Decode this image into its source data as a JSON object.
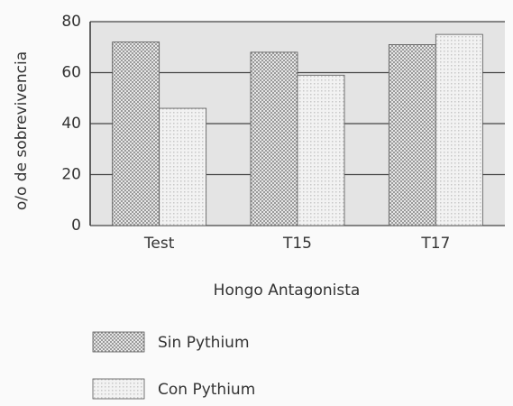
{
  "chart_data": {
    "type": "bar",
    "x_label": "Hongo Antagonista",
    "y_label": "o/o de sobrevivencia",
    "categories": [
      "Test",
      "T15",
      "T17"
    ],
    "series": [
      {
        "name": "Sin Pythium",
        "color": "#9a9a9a",
        "values": [
          72,
          68,
          71
        ]
      },
      {
        "name": "Con Pythium",
        "color": "#c8c8c8",
        "values": [
          46,
          59,
          75
        ]
      }
    ],
    "ylim": [
      0,
      80
    ],
    "yticks": [
      0,
      20,
      40,
      60,
      80
    ],
    "grid": true
  }
}
